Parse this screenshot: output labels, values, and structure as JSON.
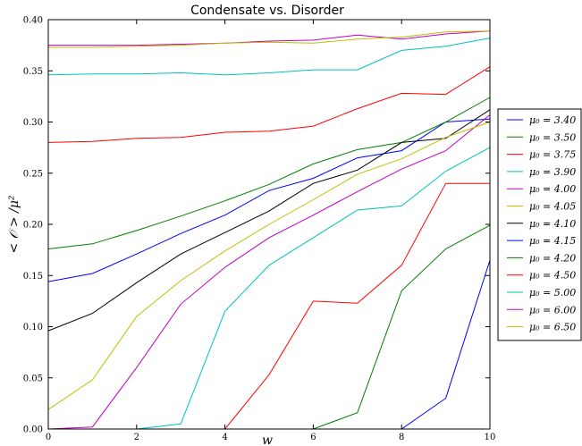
{
  "chart_data": {
    "type": "line",
    "title": "Condensate vs. Disorder",
    "xlabel": "w",
    "ylabel": "< 𝒪 > /μ²",
    "xlim": [
      0,
      10
    ],
    "ylim": [
      0,
      0.4
    ],
    "xticks": [
      "0",
      "2",
      "4",
      "6",
      "8",
      "10"
    ],
    "yticks": [
      "0.00",
      "0.05",
      "0.10",
      "0.15",
      "0.20",
      "0.25",
      "0.30",
      "0.35",
      "0.40"
    ],
    "grid": false,
    "legend_position": "right-outside",
    "x": [
      0,
      1,
      2,
      3,
      4,
      5,
      6,
      7,
      8,
      9,
      10
    ],
    "series": [
      {
        "name": "μ₀ = 3.40",
        "color": "#0000ff",
        "values": [
          0.144,
          0.152,
          0.171,
          0.191,
          0.209,
          0.233,
          0.245,
          0.265,
          0.272,
          0.3,
          0.303
        ]
      },
      {
        "name": "μ₀ = 3.50",
        "color": "#008000",
        "values": [
          0.176,
          0.181,
          0.194,
          0.208,
          0.223,
          0.239,
          0.259,
          0.273,
          0.28,
          0.3,
          0.324
        ]
      },
      {
        "name": "μ₀ = 3.75",
        "color": "#ff0000",
        "values": [
          0.28,
          0.281,
          0.284,
          0.285,
          0.29,
          0.291,
          0.296,
          0.313,
          0.328,
          0.327,
          0.354
        ]
      },
      {
        "name": "μ₀ = 3.90",
        "color": "#00bfbf",
        "values": [
          0.346,
          0.347,
          0.347,
          0.348,
          0.346,
          0.348,
          0.351,
          0.351,
          0.37,
          0.374,
          0.382
        ]
      },
      {
        "name": "μ₀ = 4.00",
        "color": "#bf00bf",
        "values": [
          0.375,
          0.375,
          0.375,
          0.376,
          0.377,
          0.379,
          0.38,
          0.385,
          0.381,
          0.386,
          0.389
        ]
      },
      {
        "name": "μ₀ = 4.05",
        "color": "#bfbf00",
        "values": [
          0.373,
          0.373,
          0.374,
          0.375,
          0.377,
          0.378,
          0.377,
          0.381,
          0.383,
          0.388,
          0.389
        ]
      },
      {
        "name": "μ₀ = 4.10",
        "color": "#000000",
        "values": [
          0.096,
          0.113,
          0.143,
          0.171,
          0.192,
          0.213,
          0.24,
          0.253,
          0.28,
          0.284,
          0.312
        ]
      },
      {
        "name": "μ₀ = 4.15",
        "color": "#0000ff",
        "values": [
          0.0,
          0.0,
          0.0,
          0.0,
          0.0,
          0.0,
          0.0,
          0.0,
          0.0,
          0.03,
          0.165
        ]
      },
      {
        "name": "μ₀ = 4.20",
        "color": "#008000",
        "values": [
          0.0,
          0.0,
          0.0,
          0.0,
          0.0,
          0.0,
          0.0,
          0.016,
          0.135,
          0.176,
          0.199
        ]
      },
      {
        "name": "μ₀ = 4.50",
        "color": "#ff0000",
        "values": [
          0.0,
          0.0,
          0.0,
          0.0,
          0.0,
          0.053,
          0.125,
          0.123,
          0.16,
          0.24,
          0.24
        ]
      },
      {
        "name": "μ₀ = 5.00",
        "color": "#00bfbf",
        "values": [
          0.0,
          0.0,
          0.0,
          0.005,
          0.115,
          0.16,
          0.187,
          0.214,
          0.218,
          0.252,
          0.275
        ]
      },
      {
        "name": "μ₀ = 6.00",
        "color": "#bf00bf",
        "values": [
          0.0,
          0.002,
          0.06,
          0.122,
          0.158,
          0.187,
          0.209,
          0.232,
          0.254,
          0.272,
          0.307
        ]
      },
      {
        "name": "μ₀ = 6.50",
        "color": "#bfbf00",
        "values": [
          0.019,
          0.048,
          0.11,
          0.145,
          0.174,
          0.2,
          0.224,
          0.249,
          0.264,
          0.285,
          0.3
        ]
      }
    ]
  }
}
